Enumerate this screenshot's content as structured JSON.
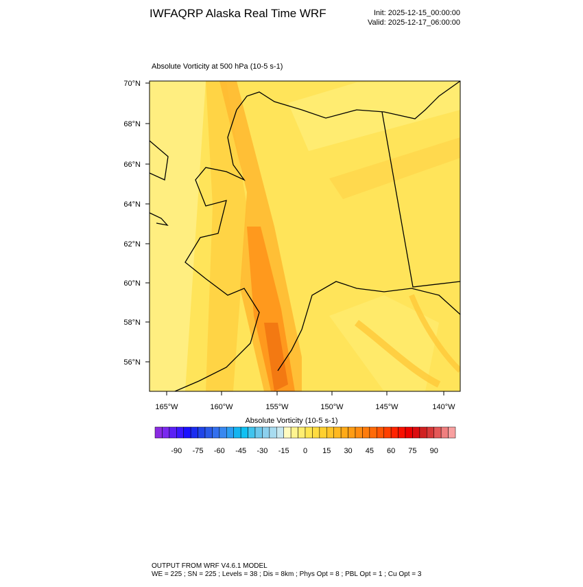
{
  "header": {
    "title": "IWFAQRP Alaska Real Time WRF",
    "init": "Init: 2025-12-15_00:00:00",
    "valid": "Valid: 2025-12-17_06:00:00"
  },
  "plot": {
    "title": "Absolute Vorticity at 500 hPa   (10-5 s-1)",
    "lat_labels": [
      "70°N",
      "68°N",
      "66°N",
      "64°N",
      "62°N",
      "60°N",
      "58°N",
      "56°N"
    ],
    "lon_labels": [
      "165°W",
      "160°W",
      "155°W",
      "150°W",
      "145°W",
      "140°W"
    ]
  },
  "colorbar": {
    "title": "Absolute Vorticity  (10-5 s-1)",
    "lim": [
      -105,
      105
    ],
    "ticks": [
      -90,
      -75,
      -60,
      -45,
      -30,
      -15,
      0,
      15,
      30,
      45,
      60,
      75,
      90
    ],
    "colors": [
      "#8a2be2",
      "#7a28ee",
      "#5a20f5",
      "#3a18ff",
      "#1a10ff",
      "#1a2cf0",
      "#2045e8",
      "#2a5ae8",
      "#3370ee",
      "#3888f0",
      "#2c9ef2",
      "#14b4f0",
      "#10c0f2",
      "#40c4ee",
      "#6cc8ec",
      "#8cd0ee",
      "#a8dcf0",
      "#c8e8f0",
      "#fffbc0",
      "#fff490",
      "#ffee70",
      "#ffe650",
      "#ffdc40",
      "#ffd030",
      "#ffc428",
      "#ffb820",
      "#ffaa18",
      "#ff9c14",
      "#ff8c10",
      "#ff7c0c",
      "#ff6a08",
      "#ff5604",
      "#ff4000",
      "#ff2400",
      "#f81000",
      "#ec0000",
      "#dc0c10",
      "#d02020",
      "#d83838",
      "#e45858",
      "#ef7f7f",
      "#f8a0a0"
    ]
  },
  "footer": {
    "line1": "OUTPUT FROM WRF V4.6.1 MODEL",
    "line2": "WE = 225 ; SN = 225 ; Levels = 38 ; Dis = 8km ; Phys Opt = 8 ; PBL Opt = 1 ; Cu Opt = 3"
  }
}
